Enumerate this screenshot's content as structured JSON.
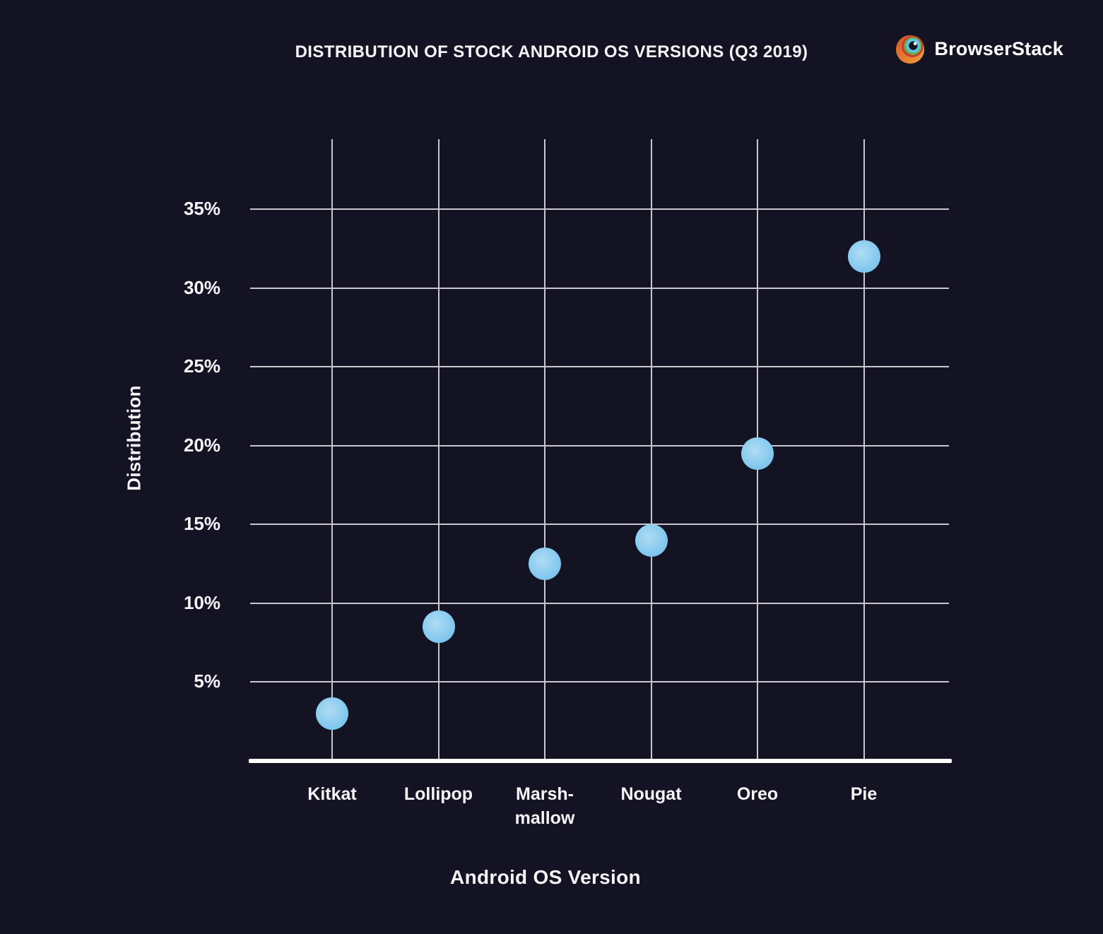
{
  "header": {
    "title": "DISTRIBUTION OF STOCK ANDROID OS VERSIONS (Q3 2019)",
    "brand": "BrowserStack"
  },
  "chart_data": {
    "type": "scatter",
    "title": "DISTRIBUTION OF STOCK ANDROID OS VERSIONS (Q3 2019)",
    "xlabel": "Android OS Version",
    "ylabel": "Distribution",
    "categories": [
      "Kitkat",
      "Lollipop",
      "Marshmallow",
      "Nougat",
      "Oreo",
      "Pie"
    ],
    "category_tick_lines": [
      [
        "Kitkat"
      ],
      [
        "Lollipop"
      ],
      [
        "Marsh-",
        "mallow"
      ],
      [
        "Nougat"
      ],
      [
        "Oreo"
      ],
      [
        "Pie"
      ]
    ],
    "values": [
      3,
      8.5,
      12.5,
      14,
      19.5,
      32
    ],
    "unit": "%",
    "y_axis": {
      "ticks": [
        5,
        10,
        15,
        20,
        25,
        30,
        35
      ],
      "tick_labels": [
        "5%",
        "10%",
        "15%",
        "20%",
        "25%",
        "30%",
        "35%"
      ],
      "ylim": [
        0,
        39.5
      ]
    },
    "grid": true,
    "legend": "none",
    "colors": {
      "background": "#141323",
      "gridline": "#c7c7cf",
      "axis_line": "#ffffff",
      "text": "#f4f4f7",
      "marker_fill": "#8fcef0",
      "marker_edge": "#6cb9e7"
    }
  }
}
